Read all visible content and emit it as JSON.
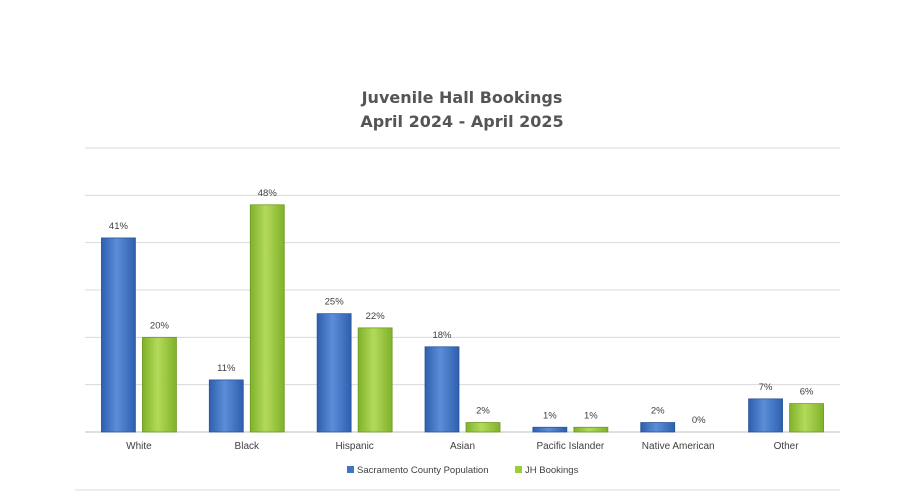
{
  "chart_data": {
    "type": "bar",
    "title": "Juvenile Hall Bookings",
    "subtitle": "April 2024 - April 2025",
    "categories": [
      "White",
      "Black",
      "Hispanic",
      "Asian",
      "Pacific Islander",
      "Native American",
      "Other"
    ],
    "series": [
      {
        "name": "Sacramento County Population",
        "values": [
          41,
          11,
          25,
          18,
          1,
          2,
          7
        ],
        "labels": [
          "41%",
          "11%",
          "25%",
          "18%",
          "1%",
          "2%",
          "7%"
        ],
        "color": "#4472C4"
      },
      {
        "name": "JH Bookings",
        "values": [
          20,
          48,
          22,
          2,
          1,
          0,
          6
        ],
        "labels": [
          "20%",
          "48%",
          "22%",
          "2%",
          "1%",
          "0%",
          "6%"
        ],
        "color": "#9ACD3C"
      }
    ],
    "ylim": [
      0,
      60
    ],
    "grid": true,
    "legend": "bottom",
    "xlabel": "",
    "ylabel": ""
  }
}
